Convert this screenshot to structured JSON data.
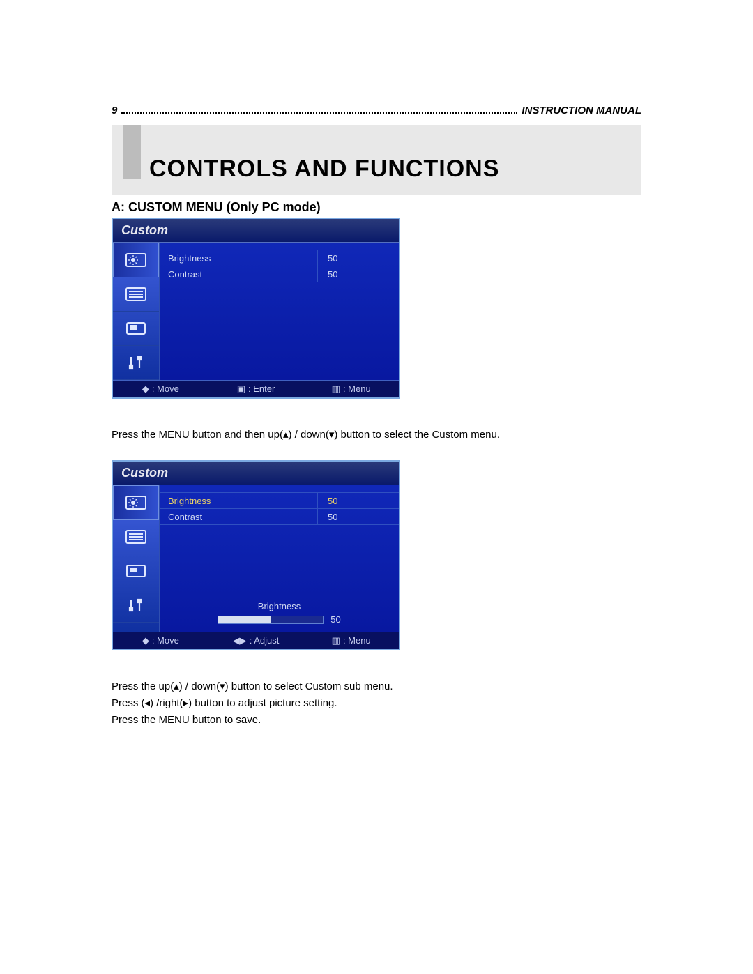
{
  "page": {
    "number": "9",
    "header_right": "INSTRUCTION MANUAL",
    "banner_title": "CONTROLS AND FUNCTIONS",
    "section_title": "A: CUSTOM MENU (Only PC mode)",
    "para1": "Press the MENU button and then up(▴) / down(▾) button to select the Custom menu.",
    "para2_line1": "Press the up(▴) / down(▾) button to select Custom sub menu.",
    "para2_line2": "Press (◂) /right(▸) button to adjust picture setting.",
    "para2_line3": "Press the MENU button to save."
  },
  "osd1": {
    "title": "Custom",
    "rows": [
      {
        "label": "Brightness",
        "value": "50",
        "selected": false
      },
      {
        "label": "Contrast",
        "value": "50",
        "selected": false
      }
    ],
    "footer": [
      {
        "symbol": "◆",
        "text": ": Move"
      },
      {
        "symbol": "▣",
        "text": ": Enter"
      },
      {
        "symbol": "▥",
        "text": ": Menu"
      }
    ],
    "colors": {
      "bg": "#0a1a8a",
      "border": "#7aa8e0",
      "text": "#d0d8f0",
      "highlight": "#e8d068"
    }
  },
  "osd2": {
    "title": "Custom",
    "rows": [
      {
        "label": "Brightness",
        "value": "50",
        "selected": true
      },
      {
        "label": "Contrast",
        "value": "50",
        "selected": false
      }
    ],
    "slider": {
      "label": "Brightness",
      "value": "50",
      "percent": 50
    },
    "footer": [
      {
        "symbol": "◆",
        "text": ": Move"
      },
      {
        "symbol": "◀▶",
        "text": ": Adjust"
      },
      {
        "symbol": "▥",
        "text": ": Menu"
      }
    ]
  },
  "sidebar_icons": [
    "brightness-icon",
    "list-icon",
    "picture-icon",
    "tools-icon"
  ]
}
